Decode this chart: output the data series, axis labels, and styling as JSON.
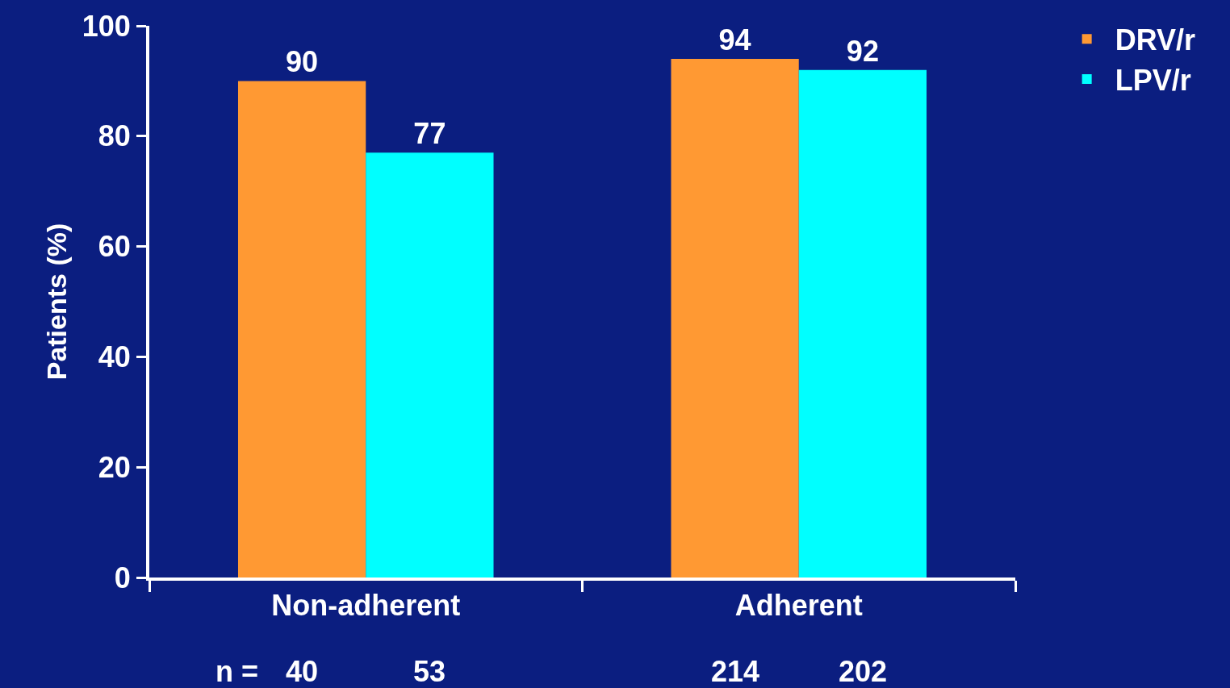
{
  "chart_data": {
    "type": "bar",
    "categories": [
      "Non-adherent",
      "Adherent"
    ],
    "series": [
      {
        "name": "DRV/r",
        "color": "#ff9933",
        "values": [
          90,
          94
        ]
      },
      {
        "name": "LPV/r",
        "color": "#00ffff",
        "values": [
          77,
          92
        ]
      }
    ],
    "ylabel": "Patients (%)",
    "ylim": [
      0,
      100
    ],
    "yticks": [
      0,
      20,
      40,
      60,
      80,
      100
    ],
    "data_labels": true,
    "grid": false,
    "legend": "top right",
    "annotations": [
      "n =",
      "40",
      "53",
      "214",
      "202"
    ]
  }
}
